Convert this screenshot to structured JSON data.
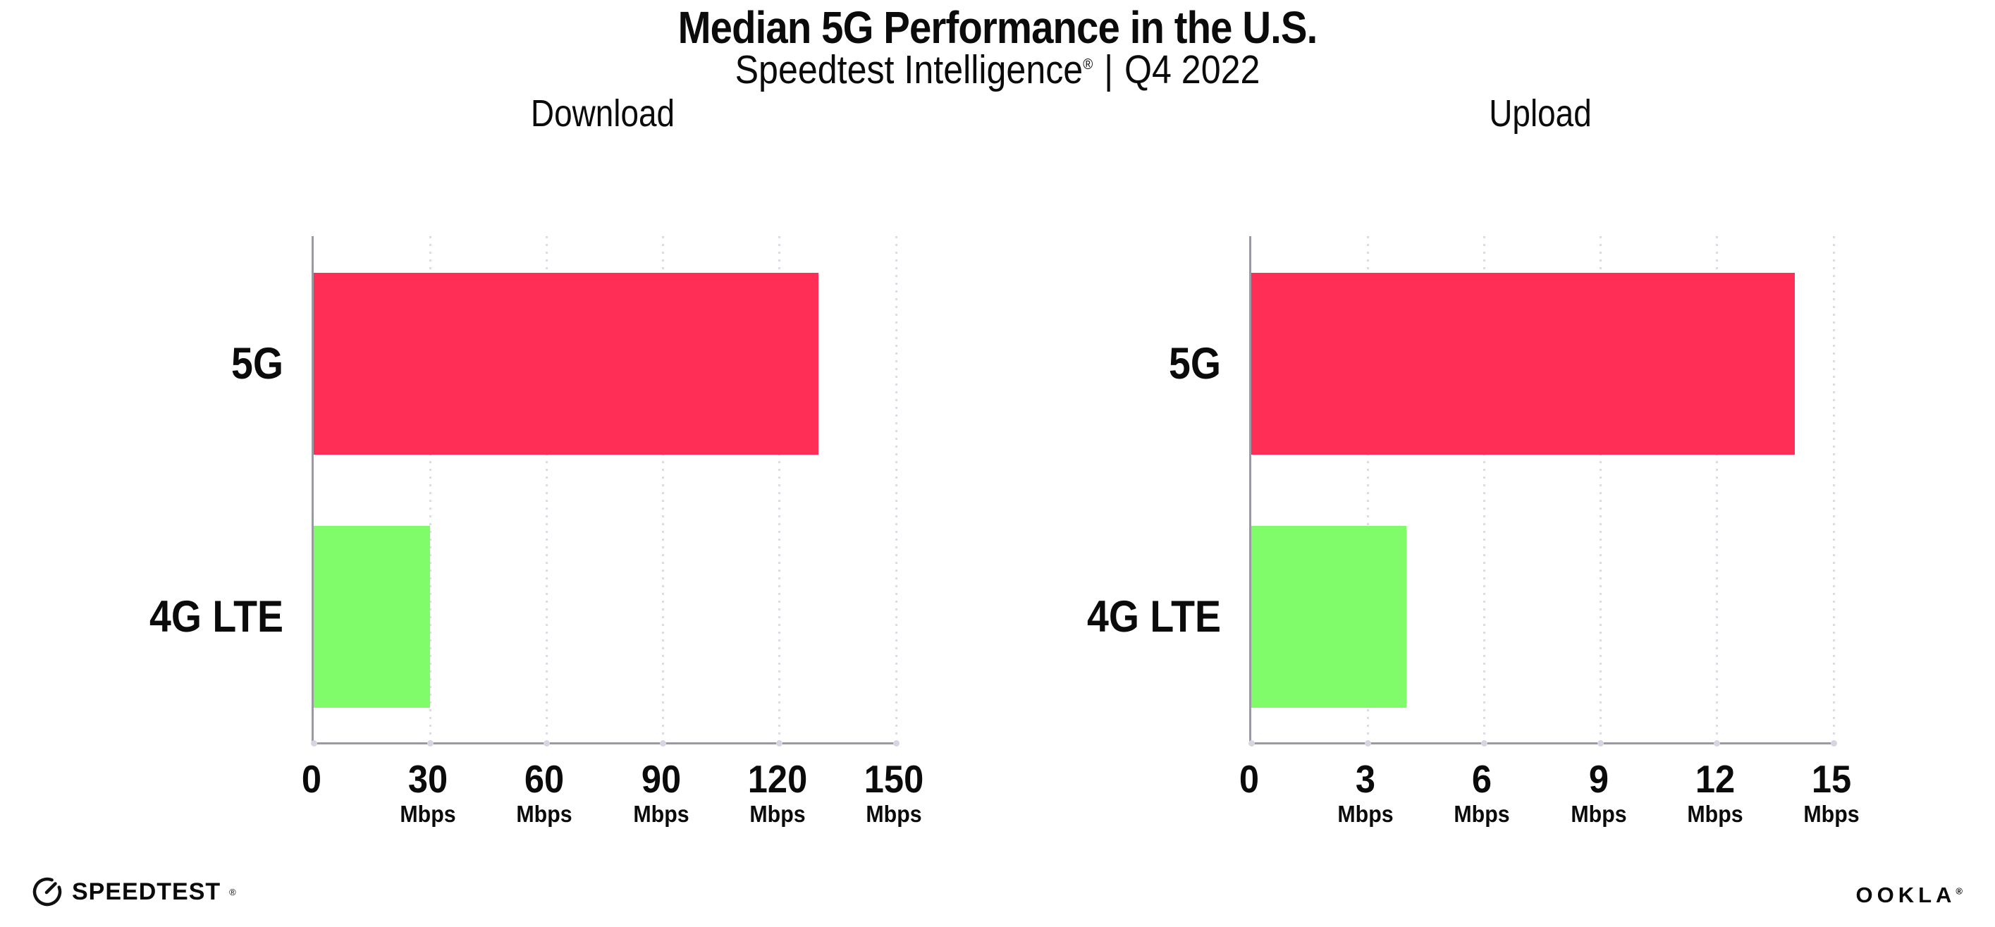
{
  "header": {
    "title": "Median 5G Performance in the U.S.",
    "subtitle_brand": "Speedtest Intelligence",
    "subtitle_reg": "®",
    "subtitle_sep": "|",
    "subtitle_period": "Q4 2022"
  },
  "chart_data": [
    {
      "type": "bar",
      "orientation": "horizontal",
      "title": "Download",
      "categories": [
        "5G",
        "4G LTE"
      ],
      "values": [
        130,
        30
      ],
      "unit": "Mbps",
      "xlim": [
        0,
        150
      ],
      "xticks": [
        0,
        30,
        60,
        90,
        120,
        150
      ],
      "tick_unit_label": "Mbps",
      "bar_colors": [
        "#FF2E56",
        "#80FB69"
      ],
      "grid": "dotted-vertical",
      "legend": "none"
    },
    {
      "type": "bar",
      "orientation": "horizontal",
      "title": "Upload",
      "categories": [
        "5G",
        "4G LTE"
      ],
      "values": [
        14,
        4
      ],
      "unit": "Mbps",
      "xlim": [
        0,
        15
      ],
      "xticks": [
        0,
        3,
        6,
        9,
        12,
        15
      ],
      "tick_unit_label": "Mbps",
      "bar_colors": [
        "#FF2E56",
        "#80FB69"
      ],
      "grid": "dotted-vertical",
      "legend": "none"
    }
  ],
  "footer": {
    "speedtest_label": "SPEEDTEST",
    "speedtest_reg": "®",
    "ookla_label": "OOKLA",
    "ookla_reg": "®"
  },
  "colors": {
    "bar_5g": "#FF2E56",
    "bar_4g_lte": "#80FB69",
    "axis": "#9A9AA0",
    "gridline_dots": "#DCDCE6",
    "text": "#0B0B0C",
    "background": "#FFFFFF"
  }
}
